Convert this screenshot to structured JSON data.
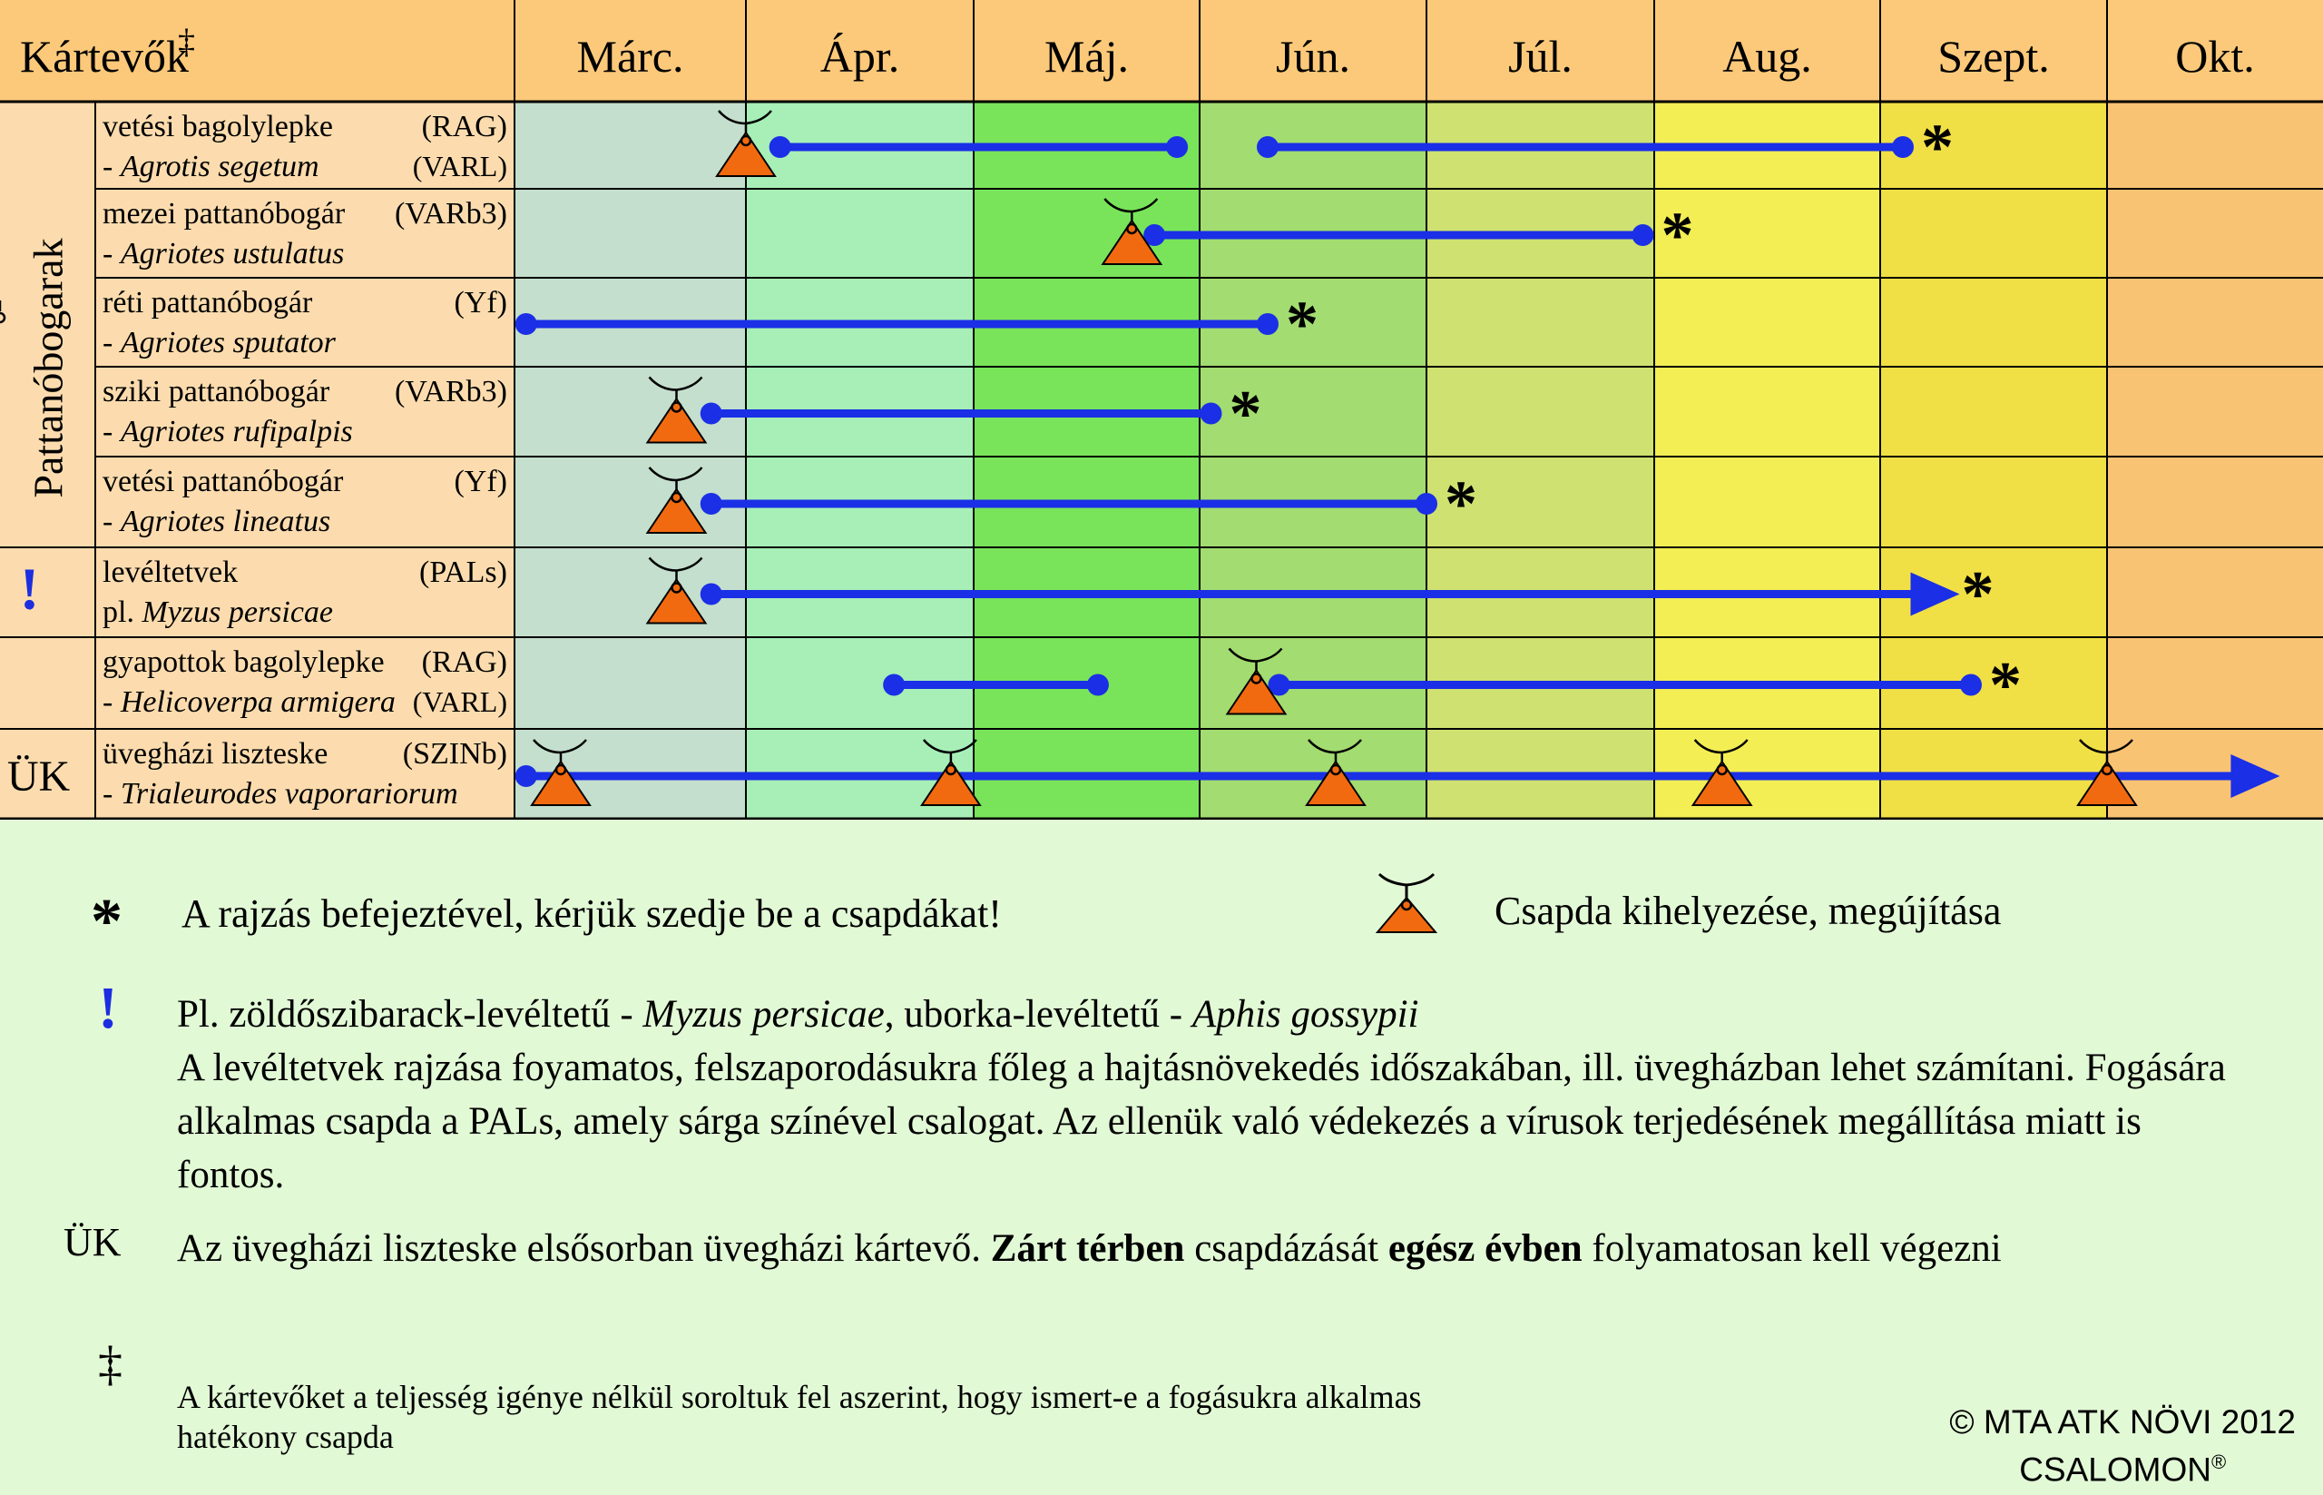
{
  "header": {
    "label": "Kártevők",
    "mark": "‡"
  },
  "months": [
    "Márc.",
    "Ápr.",
    "Máj.",
    "Jún.",
    "Júl.",
    "Aug.",
    "Szept.",
    "Okt."
  ],
  "groups": [
    {
      "label": "Pattanóbogarak",
      "rows": [
        1,
        5
      ]
    },
    {
      "label": "!",
      "rows": [
        5,
        6
      ],
      "color": "#1c2ee0"
    },
    {
      "label": "ÜK",
      "rows": [
        7,
        8
      ]
    }
  ],
  "pests": [
    {
      "name": "vetési bagolylepke",
      "latin": "Agrotis segetum",
      "latin_prefix": "- ",
      "trap": "(RAG)",
      "trap2": "(VARL)"
    },
    {
      "name": "mezei pattanóbogár",
      "latin": "Agriotes ustulatus",
      "latin_prefix": "- ",
      "trap": "(VARb3)"
    },
    {
      "name": "réti pattanóbogár",
      "latin": "Agriotes sputator",
      "latin_prefix": "- ",
      "trap": "(Yf)"
    },
    {
      "name": "sziki pattanóbogár",
      "latin": "Agriotes rufipalpis",
      "latin_prefix": "- ",
      "trap": "(VARb3)"
    },
    {
      "name": "vetési pattanóbogár",
      "latin": "Agriotes lineatus",
      "latin_prefix": "- ",
      "trap": "(Yf)"
    },
    {
      "name": "levéltetvek",
      "latin": "Myzus  persicae",
      "latin_prefix": "pl. ",
      "trap": "(PALs)"
    },
    {
      "name": "gyapottok bagolylepke",
      "latin": "Helicoverpa armigera",
      "latin_prefix": "- ",
      "trap": "(RAG)",
      "trap2": "(VARL)"
    },
    {
      "name": "üvegházi liszteske",
      "latin": "Trialeurodes vaporariorum",
      "latin_prefix": "- ",
      "trap": "(SZINb)"
    }
  ],
  "schedule": [
    {
      "row": 0,
      "traps": [
        4.0
      ],
      "bars": [
        [
          4.15,
          5.9
        ],
        [
          6.3,
          9.1
        ]
      ],
      "star": true
    },
    {
      "row": 1,
      "traps": [
        5.7
      ],
      "bars": [
        [
          5.8,
          7.95
        ]
      ],
      "star": true
    },
    {
      "row": 2,
      "traps": [
        2.9
      ],
      "bars": [
        [
          3.05,
          6.3
        ]
      ],
      "star": true
    },
    {
      "row": 3,
      "traps": [
        3.7
      ],
      "bars": [
        [
          3.85,
          6.05
        ]
      ],
      "star": true
    },
    {
      "row": 4,
      "traps": [
        3.7
      ],
      "bars": [
        [
          3.85,
          7.0
        ]
      ],
      "star": true
    },
    {
      "row": 5,
      "traps": [
        3.7
      ],
      "bars": [
        [
          3.85,
          9.35
        ]
      ],
      "arrow": true,
      "star": true
    },
    {
      "row": 6,
      "traps": [
        6.25
      ],
      "bars": [
        [
          4.65,
          5.55
        ],
        [
          6.35,
          9.4
        ]
      ],
      "star": true
    },
    {
      "row": 7,
      "traps": [
        3.2,
        4.9,
        6.6,
        8.3,
        10.0
      ],
      "bars": [
        [
          3.05,
          10.8
        ]
      ],
      "arrow": true
    }
  ],
  "legend": {
    "star_symbol": "*",
    "star_text": "A rajzás befejeztével, kérjük szedje be a csapdákat!",
    "trap_text": "Csapda kihelyezése, megújítása",
    "excl_symbol": "!",
    "excl_line1_a": "Pl. zöldőszibarack-levéltetű - ",
    "excl_line1_b": "Myzus persicae",
    "excl_line1_c": ", uborka-levéltetű - ",
    "excl_line1_d": "Aphis gossypii",
    "excl_para": "A levéltetvek rajzása foyamatos, felszaporodásukra főleg a hajtásnövekedés időszakában, ill. üvegházban lehet számítani. Fogására alkalmas csapda a PALs, amely sárga  színével csalogat. Az ellenük való védekezés a vírusok terjedésének megállítása miatt is fontos.",
    "uk_symbol": "ÜK",
    "uk_a": "Az üvegházi liszteske elsősorban üvegházi kártevő. ",
    "uk_b": "Zárt térben",
    "uk_c": " csapdázását ",
    "uk_d": "egész évben",
    "uk_e": " folyamatosan kell végezni",
    "dagger_symbol": "‡",
    "dagger_text": "A kártevőket a teljesség igénye nélkül soroltuk fel aszerint, hogy ismert-e a fogásukra alkalmas",
    "dagger_text2": " hatékony csapda",
    "copyright": "© MTA ATK NÖVI 2012",
    "brand": "CSALOMON",
    "brand_mark": "®"
  },
  "colors": {
    "bar": "#1a2fe6",
    "trap": "#f26a10",
    "header": "#fcc97a",
    "label_bg": "#fcdcae",
    "months": [
      "#c4dfcd",
      "#a7efb7",
      "#79e45a",
      "#a3dc70",
      "#cfe170",
      "#f2ee54",
      "#f1e045",
      "#f9c374"
    ]
  }
}
